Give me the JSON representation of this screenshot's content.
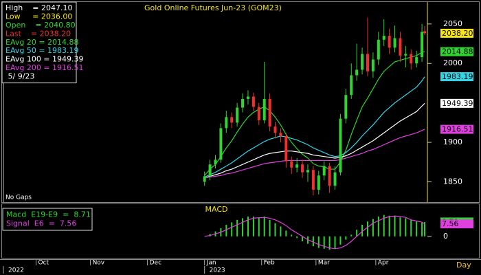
{
  "chart_data": [
    {
      "type": "candlestick",
      "title": "Gold Online Futures Jun-23 (GOM23)",
      "note": "No Gaps",
      "x_label": "Day",
      "x": [
        74,
        76,
        78,
        80,
        82,
        84,
        86,
        88,
        90,
        92,
        94,
        96,
        98,
        100,
        102,
        104,
        106,
        108,
        110,
        112,
        114,
        116,
        118,
        120,
        122,
        124,
        126,
        128,
        130,
        132,
        134,
        136,
        138,
        140,
        142,
        144,
        146,
        148,
        150,
        152,
        154,
        155
      ],
      "open": [
        1850,
        1857,
        1872,
        1878,
        1918,
        1932,
        1925,
        1944,
        1955,
        1958,
        1945,
        1928,
        1955,
        1920,
        1912,
        1908,
        1876,
        1868,
        1872,
        1862,
        1865,
        1840,
        1858,
        1870,
        1845,
        1862,
        1930,
        1960,
        1985,
        1992,
        2012,
        1990,
        2005,
        2030,
        2035,
        2020,
        2032,
        2010,
        2012,
        2000,
        2008,
        2040.8
      ],
      "high": [
        1863,
        1878,
        1884,
        1924,
        1940,
        1938,
        1950,
        1962,
        1966,
        1963,
        1950,
        2002,
        1962,
        1926,
        1918,
        1912,
        1882,
        1880,
        1878,
        1872,
        1870,
        1864,
        1876,
        1874,
        1870,
        1936,
        1968,
        2000,
        2025,
        2020,
        2058,
        2014,
        2040,
        2056,
        2044,
        2048,
        2040,
        2022,
        2018,
        2016,
        2050,
        2047.1
      ],
      "low": [
        1845,
        1852,
        1867,
        1874,
        1912,
        1918,
        1920,
        1938,
        1948,
        1940,
        1922,
        1924,
        1914,
        1905,
        1900,
        1868,
        1860,
        1862,
        1855,
        1850,
        1833,
        1834,
        1852,
        1836,
        1840,
        1858,
        1924,
        1955,
        1978,
        1986,
        1984,
        1982,
        1998,
        2022,
        2012,
        2014,
        2002,
        1995,
        1992,
        1995,
        2002,
        2036
      ],
      "close": [
        1857,
        1872,
        1878,
        1918,
        1932,
        1925,
        1944,
        1955,
        1958,
        1945,
        1928,
        1955,
        1920,
        1912,
        1908,
        1876,
        1868,
        1872,
        1862,
        1865,
        1840,
        1858,
        1870,
        1845,
        1862,
        1930,
        1960,
        1985,
        1992,
        2012,
        1990,
        2005,
        2030,
        2035,
        2020,
        2032,
        2010,
        2012,
        2000,
        2008,
        2040,
        2038.2
      ],
      "close_label": "2038.20",
      "up_color": "#2fd62f",
      "down_color": "#ee3030",
      "close_label_color": "#f5e51a",
      "series": [
        {
          "color": "#2fd62f",
          "value_label": "2014.88",
          "values": [
            1858,
            1866,
            1872,
            1882,
            1893,
            1902,
            1913,
            1923,
            1932,
            1938,
            1942,
            1945,
            1940,
            1932,
            1922,
            1910,
            1900,
            1892,
            1885,
            1880,
            1873,
            1870,
            1869,
            1866,
            1866,
            1875,
            1890,
            1910,
            1928,
            1945,
            1956,
            1968,
            1980,
            1990,
            1996,
            2002,
            2004,
            2006,
            2008,
            2010,
            2014,
            2014.88
          ]
        },
        {
          "color": "#33d6e8",
          "value_label": "1983.19",
          "values": [
            1856,
            1859,
            1862,
            1866,
            1870,
            1874,
            1879,
            1884,
            1889,
            1893,
            1897,
            1901,
            1904,
            1906,
            1908,
            1907,
            1905,
            1903,
            1900,
            1897,
            1893,
            1890,
            1887,
            1884,
            1882,
            1883,
            1887,
            1893,
            1900,
            1908,
            1915,
            1922,
            1930,
            1938,
            1944,
            1950,
            1955,
            1960,
            1965,
            1970,
            1978,
            1983.19
          ]
        },
        {
          "color": "#ffffff",
          "value_label": "1949.39",
          "values": [
            1855,
            1857,
            1859,
            1861,
            1864,
            1866,
            1869,
            1872,
            1875,
            1878,
            1881,
            1884,
            1886,
            1887,
            1888,
            1889,
            1889,
            1888,
            1887,
            1886,
            1884,
            1883,
            1882,
            1881,
            1880,
            1881,
            1883,
            1886,
            1890,
            1894,
            1898,
            1902,
            1907,
            1912,
            1917,
            1922,
            1927,
            1931,
            1935,
            1939,
            1946,
            1949.39
          ]
        },
        {
          "color": "#e040e0",
          "value_label": "1916.51",
          "values": [
            1855,
            1856,
            1857,
            1858,
            1860,
            1861,
            1863,
            1865,
            1867,
            1869,
            1871,
            1873,
            1874,
            1875,
            1876,
            1877,
            1877,
            1877,
            1877,
            1877,
            1877,
            1877,
            1877,
            1877,
            1877,
            1878,
            1880,
            1882,
            1884,
            1886,
            1889,
            1891,
            1894,
            1897,
            1900,
            1903,
            1906,
            1908,
            1910,
            1912,
            1915,
            1916.51
          ]
        }
      ],
      "info": [
        {
          "text": "High    = 2047.10",
          "color": "#ffffff"
        },
        {
          "text": "Low     = 2036.00",
          "color": "#f5e51a"
        },
        {
          "text": "Open    = 2040.80",
          "color": "#2fd62f"
        },
        {
          "text": "Last    = 2038.20",
          "color": "#ee3030"
        },
        {
          "text": "EAvg 20 = 2014.88",
          "color": "#2fd62f"
        },
        {
          "text": "EAvg 50 = 1983.19",
          "color": "#33d6e8"
        },
        {
          "text": "EAvg 100 = 1949.39",
          "color": "#ffffff"
        },
        {
          "text": "EAvg 200 = 1916.51",
          "color": "#e040e0"
        },
        {
          "text": " 5/ 9/23",
          "color": "#ffffff"
        }
      ],
      "xlim": [
        0,
        156
      ],
      "xticks": [
        {
          "value": 12,
          "label": "Oct"
        },
        {
          "value": 32,
          "label": "Nov"
        },
        {
          "value": 53,
          "label": "Dec"
        },
        {
          "value": 74,
          "label": "Jan"
        },
        {
          "value": 95,
          "label": "Feb"
        },
        {
          "value": 115,
          "label": "Mar"
        },
        {
          "value": 137,
          "label": "Apr"
        }
      ],
      "year_ticks": [
        {
          "value": 0,
          "label": "2022"
        },
        {
          "value": 74,
          "label": "2023"
        }
      ],
      "ylim": [
        1826,
        2076
      ],
      "yticks": [
        1850,
        1900,
        2000,
        2050
      ]
    },
    {
      "type": "macd",
      "title": "MACD",
      "series": [
        {
          "style": "histogram",
          "color": "#2fd62f",
          "value_label": "8.71",
          "values": [
            0,
            1.5,
            3,
            5,
            7,
            8.5,
            10,
            11,
            12,
            12,
            11.5,
            12,
            10,
            8,
            6,
            3.5,
            1,
            -1,
            -3,
            -4.5,
            -6,
            -7,
            -7.5,
            -8,
            -7.5,
            -5,
            -2,
            1,
            4,
            7,
            9,
            10.5,
            12,
            13,
            12.5,
            12.5,
            11.5,
            11,
            10,
            9,
            8.3,
            8.71
          ]
        },
        {
          "style": "line",
          "color": "#e040e0",
          "value_label": "7.56",
          "values": [
            0,
            0.5,
            1.5,
            2.5,
            4,
            5.5,
            7,
            8.5,
            10,
            11,
            11.3,
            11.5,
            11,
            10,
            8.5,
            6.5,
            4,
            2,
            0,
            -2,
            -3.5,
            -5,
            -6,
            -7,
            -7.5,
            -7,
            -5.5,
            -3,
            0,
            3,
            5.5,
            8,
            9.5,
            11,
            12,
            12.3,
            12,
            11.5,
            10,
            9.3,
            8.6,
            7.56
          ]
        }
      ],
      "info": [
        {
          "text": "Macd  E19-E9  =  8.71",
          "color": "#2fd62f"
        },
        {
          "text": "Signal  E6  =  7.56",
          "color": "#e040e0"
        }
      ],
      "ylim": [
        -13,
        19.5
      ],
      "yticks": [
        0
      ]
    }
  ]
}
